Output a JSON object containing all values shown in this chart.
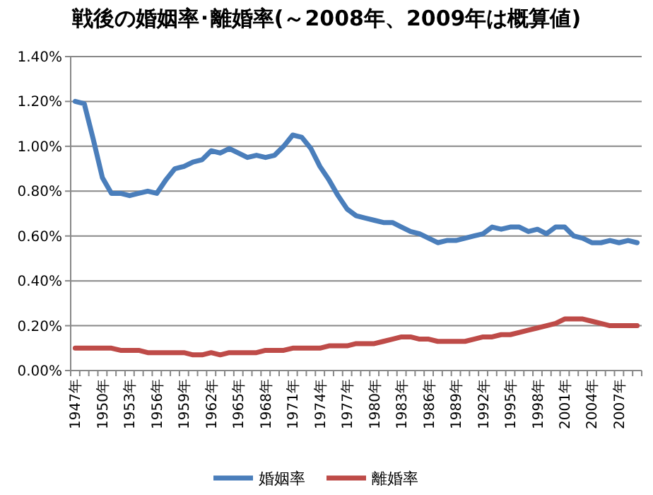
{
  "chart_data": {
    "type": "line",
    "title": "戦後の婚姻率･離婚率(～2008年、2009年は概算値)",
    "categories": [
      "1947年",
      null,
      null,
      "1950年",
      null,
      null,
      "1953年",
      null,
      null,
      "1956年",
      null,
      null,
      "1959年",
      null,
      null,
      "1962年",
      null,
      null,
      "1965年",
      null,
      null,
      "1968年",
      null,
      null,
      "1971年",
      null,
      null,
      "1974年",
      null,
      null,
      "1977年",
      null,
      null,
      "1980年",
      null,
      null,
      "1983年",
      null,
      null,
      "1986年",
      null,
      null,
      "1989年",
      null,
      null,
      "1992年",
      null,
      null,
      "1995年",
      null,
      null,
      "1998年",
      null,
      null,
      "2001年",
      null,
      null,
      "2004年",
      null,
      null,
      "2007年",
      null,
      null
    ],
    "series": [
      {
        "name": "婚姻率",
        "color": "#4a7ebb",
        "values": [
          1.2,
          1.19,
          1.03,
          0.86,
          0.79,
          0.79,
          0.78,
          0.79,
          0.8,
          0.79,
          0.85,
          0.9,
          0.91,
          0.93,
          0.94,
          0.98,
          0.97,
          0.99,
          0.97,
          0.95,
          0.96,
          0.95,
          0.96,
          1.0,
          1.05,
          1.04,
          0.99,
          0.91,
          0.85,
          0.78,
          0.72,
          0.69,
          0.68,
          0.67,
          0.66,
          0.66,
          0.64,
          0.62,
          0.61,
          0.59,
          0.57,
          0.58,
          0.58,
          0.59,
          0.6,
          0.61,
          0.64,
          0.63,
          0.64,
          0.64,
          0.62,
          0.63,
          0.61,
          0.64,
          0.64,
          0.6,
          0.59,
          0.57,
          0.57,
          0.58,
          0.57,
          0.58,
          0.57
        ]
      },
      {
        "name": "離婚率",
        "color": "#be4b48",
        "values": [
          0.1,
          0.1,
          0.1,
          0.1,
          0.1,
          0.09,
          0.09,
          0.09,
          0.08,
          0.08,
          0.08,
          0.08,
          0.08,
          0.07,
          0.07,
          0.08,
          0.07,
          0.08,
          0.08,
          0.08,
          0.08,
          0.09,
          0.09,
          0.09,
          0.1,
          0.1,
          0.1,
          0.1,
          0.11,
          0.11,
          0.11,
          0.12,
          0.12,
          0.12,
          0.13,
          0.14,
          0.15,
          0.15,
          0.14,
          0.14,
          0.13,
          0.13,
          0.13,
          0.13,
          0.14,
          0.15,
          0.15,
          0.16,
          0.16,
          0.17,
          0.18,
          0.19,
          0.2,
          0.21,
          0.23,
          0.23,
          0.23,
          0.22,
          0.21,
          0.2,
          0.2,
          0.2,
          0.2
        ]
      }
    ],
    "ylim": [
      0,
      1.4
    ],
    "yticks": [
      {
        "value": 0,
        "label": "0.00%"
      },
      {
        "value": 0.2,
        "label": "0.20%"
      },
      {
        "value": 0.4,
        "label": "0.40%"
      },
      {
        "value": 0.6,
        "label": "0.60%"
      },
      {
        "value": 0.8,
        "label": "0.80%"
      },
      {
        "value": 1.0,
        "label": "1.00%"
      },
      {
        "value": 1.2,
        "label": "1.20%"
      },
      {
        "value": 1.4,
        "label": "1.40%"
      }
    ],
    "grid": "y",
    "legend": "bottom",
    "marker": "none",
    "line_style": "solid"
  }
}
